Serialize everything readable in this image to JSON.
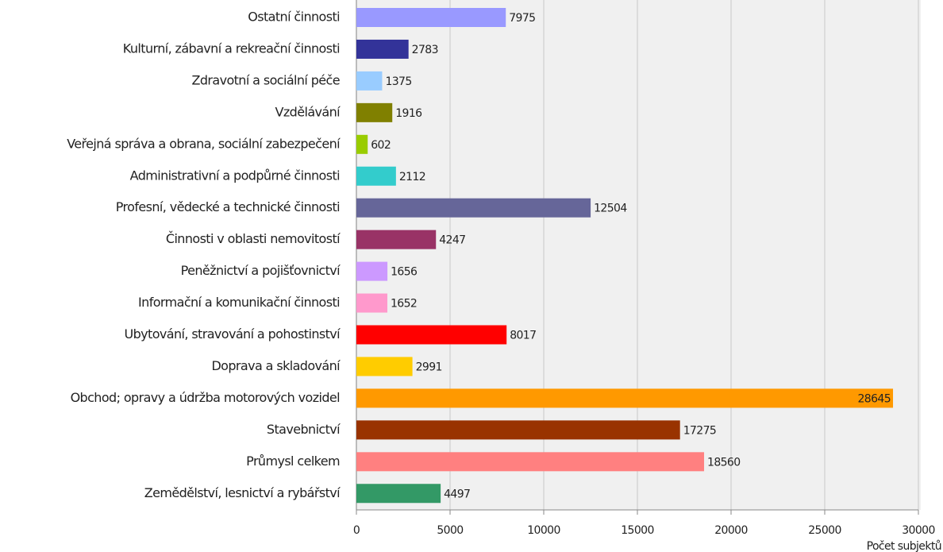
{
  "chart_data": {
    "type": "barh",
    "categories": [
      "Ostatní činnosti",
      "Kulturní, zábavní a rekreační činnosti",
      "Zdravotní a sociální péče",
      "Vzdělávání",
      "Veřejná správa a obrana, sociální zabezpečení",
      "Administrativní a podpůrné činnosti",
      "Profesní, vědecké a technické činnosti",
      "Činnosti v oblasti nemovitostí",
      "Peněžnictví a pojišťovnictví",
      "Informační a komunikační činnosti",
      "Ubytování, stravování a pohostinství",
      "Doprava a skladování",
      "Obchod; opravy a údržba motorových vozidel",
      "Stavebnictví",
      "Průmysl celkem",
      "Zemědělství, lesnictví a rybářství"
    ],
    "values": [
      7975,
      2783,
      1375,
      1916,
      602,
      2112,
      12504,
      4247,
      1656,
      1652,
      8017,
      2991,
      28645,
      17275,
      18560,
      4497
    ],
    "colors": [
      "#9999ff",
      "#333399",
      "#99ccff",
      "#808000",
      "#99cc00",
      "#33cccc",
      "#666699",
      "#993366",
      "#cc99ff",
      "#ff99cc",
      "#ff0000",
      "#ffcc00",
      "#ff9900",
      "#993300",
      "#ff8080",
      "#339966"
    ],
    "xlabel": "Počet subjektů",
    "xlim": [
      0,
      30000
    ],
    "xticks": [
      0,
      5000,
      10000,
      15000,
      20000,
      25000,
      30000
    ],
    "grid": true
  }
}
